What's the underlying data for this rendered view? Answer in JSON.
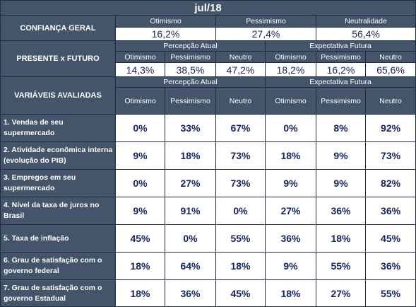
{
  "title": "jul/18",
  "confianca": {
    "label": "CONFIANÇA GERAL",
    "headers": [
      "Otimismo",
      "Pessimismo",
      "Neutralidade"
    ],
    "values": [
      "16,2%",
      "27,4%",
      "56,4%"
    ]
  },
  "presente_futuro": {
    "label": "PRESENTE x FUTURO",
    "group_atual": "Percepção Atual",
    "group_futura": "Expectativa Futura",
    "sub": [
      "Otimismo",
      "Pessimismo",
      "Neutro",
      "Otimismo",
      "Pessimismo",
      "Neutro"
    ],
    "values": [
      "14,3%",
      "38,5%",
      "47,2%",
      "18,2%",
      "16,2%",
      "65,6%"
    ]
  },
  "variaveis": {
    "label": "VARIÁVEIS AVALIADAS",
    "group_atual": "Percepção Atual",
    "group_futura": "Expectativa Futura",
    "sub": [
      "Otimismo",
      "Pessimismo",
      "Neutro",
      "Otimismo",
      "Pessimismo",
      "Neutro"
    ],
    "rows": [
      {
        "label": "1. Vendas de seu supermercado",
        "values": [
          "0%",
          "33%",
          "67%",
          "0%",
          "8%",
          "92%"
        ]
      },
      {
        "label": "2. Atividade econômica interna (evolução do PIB)",
        "values": [
          "9%",
          "18%",
          "73%",
          "18%",
          "9%",
          "73%"
        ]
      },
      {
        "label": "3. Empregos em seu supermercado",
        "values": [
          "0%",
          "27%",
          "73%",
          "9%",
          "9%",
          "82%"
        ]
      },
      {
        "label": "4. Nível da taxa de juros no Brasil",
        "values": [
          "9%",
          "91%",
          "0%",
          "27%",
          "36%",
          "36%"
        ]
      },
      {
        "label": "5. Taxa de inflação",
        "values": [
          "45%",
          "0%",
          "55%",
          "36%",
          "18%",
          "45%"
        ]
      },
      {
        "label": "6. Grau de satisfação com o governo federal",
        "values": [
          "18%",
          "64%",
          "18%",
          "9%",
          "55%",
          "36%"
        ]
      },
      {
        "label": "7. Grau de satisfação com o governo Estadual",
        "values": [
          "18%",
          "36%",
          "45%",
          "18%",
          "27%",
          "55%"
        ]
      }
    ]
  }
}
